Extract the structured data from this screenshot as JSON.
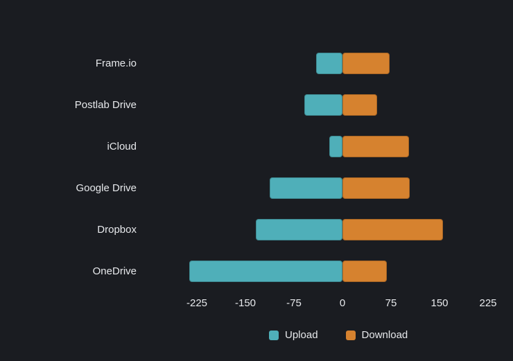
{
  "chart_data": {
    "type": "bar",
    "variant": "horizontal-diverging",
    "title": "",
    "xlabel": "",
    "ylabel": "",
    "grid": false,
    "legend_position": "bottom",
    "categories": [
      "Frame.io",
      "Postlab Drive",
      "iCloud",
      "Google Drive",
      "Dropbox",
      "OneDrive"
    ],
    "series": [
      {
        "name": "Upload",
        "color": "#4fafb9",
        "values": [
          -41,
          -59,
          -20,
          -112,
          -134,
          -237
        ]
      },
      {
        "name": "Download",
        "color": "#d6822f",
        "values": [
          73,
          54,
          103,
          104,
          155,
          69
        ]
      }
    ],
    "x_tick_values": [
      -225,
      -150,
      -75,
      0,
      75,
      150,
      225
    ],
    "x_axis_range": [
      -240,
      258
    ]
  },
  "colors": {
    "background": "#1a1c21",
    "text": "#e7e9ec",
    "upload": "#4fafb9",
    "download": "#d6822f"
  }
}
